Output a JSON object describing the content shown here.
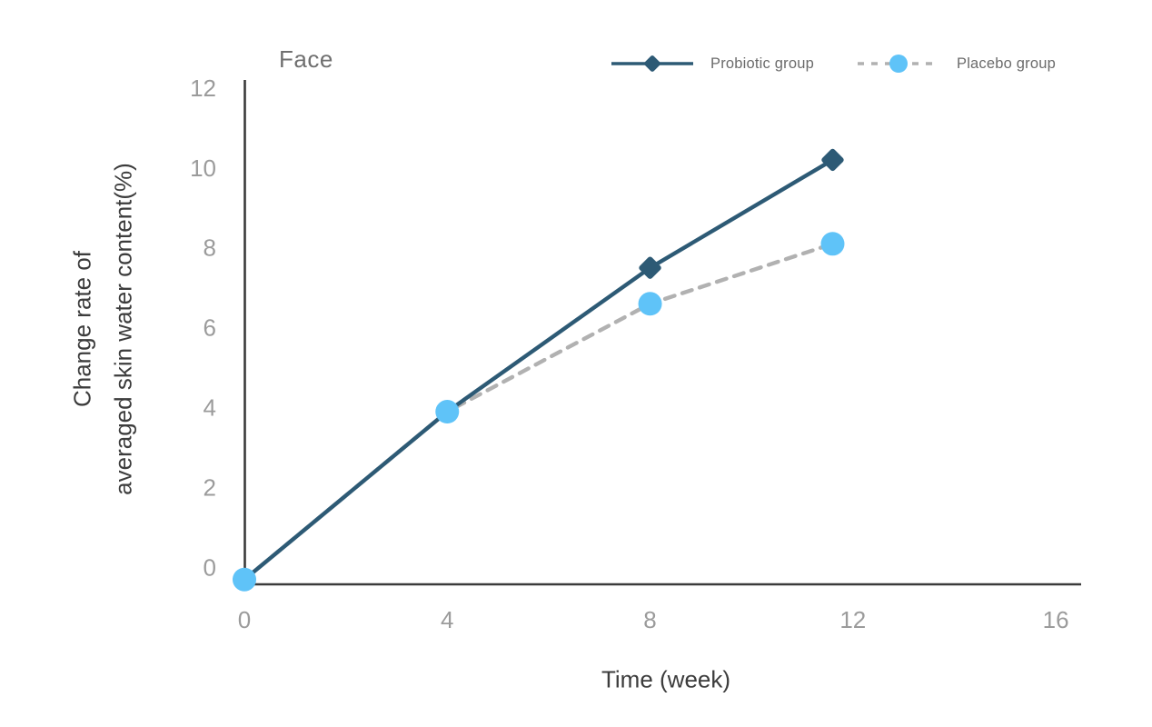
{
  "chart_data": {
    "type": "line",
    "title": "Face",
    "xlabel": "Time (week)",
    "ylabel_lines": [
      "Change rate of",
      "averaged skin water content(%)"
    ],
    "xlim": [
      0,
      16.5
    ],
    "ylim": [
      -0.42,
      12.2
    ],
    "xticks": [
      0,
      4,
      8,
      12,
      16
    ],
    "yticks": [
      0,
      2,
      4,
      6,
      8,
      10,
      12
    ],
    "grid": false,
    "legend_position": "top-right",
    "series": [
      {
        "name": "Probiotic group",
        "marker": "diamond",
        "line_style": "solid",
        "color": "#2D5A75",
        "x": [
          0,
          4,
          8,
          11.6
        ],
        "values": [
          -0.3,
          3.9,
          7.5,
          10.2
        ]
      },
      {
        "name": "Placebo group",
        "marker": "circle",
        "line_style": "dashed",
        "color": "#5FC3F8",
        "line_color": "#B1B1B1",
        "x": [
          0,
          4,
          8,
          11.6
        ],
        "values": [
          -0.3,
          3.9,
          6.6,
          8.1
        ]
      }
    ],
    "colors": {
      "axis": "#3A3A3A",
      "tick_labels": "#9B9B9B",
      "title": "#6F6F6F",
      "axis_titles": "#3C3C3C",
      "legend_text": "#6B6B6B"
    }
  }
}
